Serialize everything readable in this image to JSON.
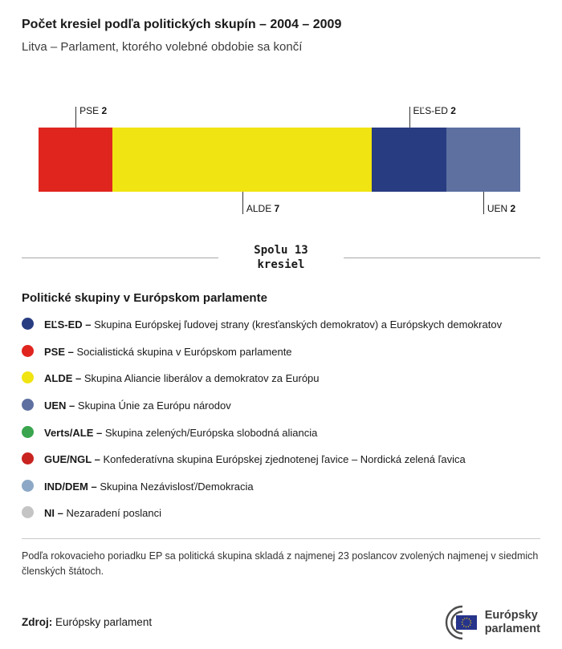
{
  "header": {
    "title": "Počet kresiel podľa politických skupín – 2004 – 2009",
    "subtitle": "Litva – Parlament, ktorého volebné obdobie sa končí"
  },
  "chart_data": {
    "type": "bar",
    "variant": "horizontal-stacked",
    "title": "Počet kresiel podľa politických skupín – 2004 – 2009",
    "total": 13,
    "total_label": "Spolu 13 kresiel",
    "segments": [
      {
        "name": "PSE",
        "value": 2,
        "color": "#e0251f",
        "label_position": "top"
      },
      {
        "name": "ALDE",
        "value": 7,
        "color": "#f0e412",
        "label_position": "bottom"
      },
      {
        "name": "EĽS-ED",
        "value": 2,
        "color": "#283c82",
        "label_position": "top"
      },
      {
        "name": "UEN",
        "value": 2,
        "color": "#5d70a0",
        "label_position": "bottom"
      }
    ]
  },
  "legend": {
    "heading": "Politické skupiny v Európskom parlamente",
    "items": [
      {
        "abbr": "EĽS-ED –",
        "desc": "Skupina Európskej ľudovej strany (kresťanských demokratov) a Európskych demokratov",
        "color": "#283c82"
      },
      {
        "abbr": "PSE –",
        "desc": "Socialistická skupina v Európskom parlamente",
        "color": "#e0251f"
      },
      {
        "abbr": "ALDE –",
        "desc": "Skupina Aliancie liberálov a demokratov za Európu",
        "color": "#f0e412"
      },
      {
        "abbr": "UEN –",
        "desc": "Skupina Únie za Európu národov",
        "color": "#5d70a0"
      },
      {
        "abbr": "Verts/ALE –",
        "desc": "Skupina zelených/Európska slobodná aliancia",
        "color": "#3aa54e"
      },
      {
        "abbr": "GUE/NGL –",
        "desc": "Konfederatívna skupina Európskej zjednotenej ľavice – Nordická zelená ľavica",
        "color": "#c9231f"
      },
      {
        "abbr": "IND/DEM –",
        "desc": "Skupina Nezávislosť/Demokracia",
        "color": "#8ca8c6"
      },
      {
        "abbr": "NI –",
        "desc": "Nezaradení poslanci",
        "color": "#c4c4c4"
      }
    ]
  },
  "footnote": "Podľa rokovacieho poriadku EP sa politická skupina skladá z najmenej 23 poslancov zvolených najmenej v siedmich členských štátoch.",
  "source": {
    "label": "Zdroj:",
    "text": "Európsky parlament"
  },
  "logo": {
    "line1": "Európsky",
    "line2": "parlament"
  }
}
